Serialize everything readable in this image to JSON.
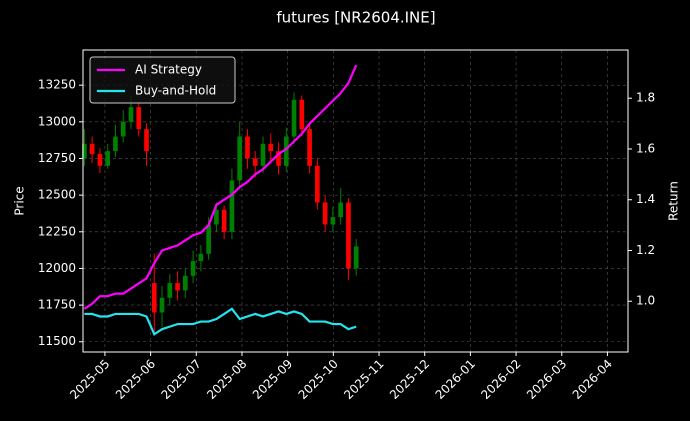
{
  "chart_data": {
    "type": "candlestick",
    "title": "futures [NR2604.INE]",
    "ylabel": "Price",
    "y2label": "Return",
    "x": [
      -0.45,
      -0.28,
      -0.11,
      0.06,
      0.23,
      0.4,
      0.57,
      0.74,
      0.91,
      1.08,
      1.25,
      1.42,
      1.59,
      1.76,
      1.93,
      2.1,
      2.27,
      2.44,
      2.61,
      2.78,
      2.95,
      3.12,
      3.29,
      3.46,
      3.63,
      3.8,
      3.97,
      4.14,
      4.31,
      4.48,
      4.65,
      4.82,
      4.99,
      5.16,
      5.33,
      5.5
    ],
    "open": [
      12750,
      12850,
      12780,
      12700,
      12800,
      12900,
      13000,
      13100,
      12950,
      11900,
      11700,
      11800,
      11900,
      11850,
      11950,
      12050,
      12100,
      12300,
      12400,
      12250,
      12600,
      12900,
      12750,
      12700,
      12850,
      12800,
      12700,
      12900,
      13150,
      12950,
      12700,
      12450,
      12300,
      12350,
      12450,
      12000
    ],
    "high": [
      12950,
      12900,
      12820,
      12850,
      12980,
      13080,
      13180,
      13130,
      12990,
      12100,
      11880,
      11960,
      11980,
      12000,
      12120,
      12160,
      12350,
      12450,
      12430,
      12680,
      13000,
      12950,
      12800,
      12900,
      12920,
      12860,
      12960,
      13200,
      13180,
      13000,
      12750,
      12500,
      12420,
      12550,
      12480,
      12200
    ],
    "low": [
      12700,
      12720,
      12650,
      12680,
      12760,
      12860,
      12950,
      12900,
      12700,
      11550,
      11600,
      11750,
      11780,
      11800,
      11900,
      11980,
      12060,
      12250,
      12200,
      12200,
      12550,
      12680,
      12620,
      12650,
      12720,
      12640,
      12660,
      12850,
      12900,
      12650,
      12400,
      12250,
      12250,
      12300,
      11920,
      11950
    ],
    "close": [
      12850,
      12780,
      12700,
      12800,
      12900,
      13000,
      13100,
      12950,
      12800,
      11700,
      11800,
      11900,
      11850,
      11950,
      12050,
      12100,
      12300,
      12400,
      12250,
      12600,
      12900,
      12750,
      12700,
      12850,
      12800,
      12700,
      12900,
      13150,
      12950,
      12700,
      12450,
      12300,
      12350,
      12450,
      12000,
      12150
    ],
    "up_color": "#008000",
    "down_color": "#ff0000",
    "series": [
      {
        "name": "AI Strategy",
        "color": "#ff00ff",
        "axis": "y2",
        "values": [
          0.97,
          0.99,
          1.02,
          1.02,
          1.03,
          1.03,
          1.05,
          1.07,
          1.09,
          1.15,
          1.2,
          1.21,
          1.22,
          1.24,
          1.26,
          1.27,
          1.3,
          1.38,
          1.4,
          1.42,
          1.45,
          1.47,
          1.5,
          1.52,
          1.55,
          1.58,
          1.6,
          1.63,
          1.66,
          1.7,
          1.73,
          1.76,
          1.79,
          1.82,
          1.86,
          1.93
        ]
      },
      {
        "name": "Buy-and-Hold",
        "color": "#22e5f0",
        "axis": "y2",
        "values": [
          0.95,
          0.95,
          0.94,
          0.94,
          0.95,
          0.95,
          0.95,
          0.95,
          0.94,
          0.87,
          0.89,
          0.9,
          0.91,
          0.91,
          0.91,
          0.92,
          0.92,
          0.93,
          0.95,
          0.97,
          0.93,
          0.94,
          0.95,
          0.94,
          0.95,
          0.96,
          0.95,
          0.96,
          0.95,
          0.92,
          0.92,
          0.92,
          0.91,
          0.91,
          0.89,
          0.9
        ]
      }
    ],
    "xlim": [
      -0.48,
      11.45
    ],
    "xticks": [
      {
        "value": 0,
        "label": "2025-05"
      },
      {
        "value": 1,
        "label": "2025-06"
      },
      {
        "value": 2,
        "label": "2025-07"
      },
      {
        "value": 3,
        "label": "2025-08"
      },
      {
        "value": 4,
        "label": "2025-09"
      },
      {
        "value": 5,
        "label": "2025-10"
      },
      {
        "value": 6,
        "label": "2025-11"
      },
      {
        "value": 7,
        "label": "2025-12"
      },
      {
        "value": 8,
        "label": "2026-01"
      },
      {
        "value": 9,
        "label": "2026-02"
      },
      {
        "value": 10,
        "label": "2026-03"
      },
      {
        "value": 11,
        "label": "2026-04"
      }
    ],
    "ylim": [
      11430,
      13490
    ],
    "yticks": [
      11500,
      11750,
      12000,
      12250,
      12500,
      12750,
      13000,
      13250
    ],
    "y2lim": [
      0.8,
      1.99
    ],
    "y2ticks": [
      {
        "value": 1,
        "label": "1.0"
      },
      1.2,
      1.4,
      1.6,
      1.8
    ],
    "grid": true,
    "legend": "upper left"
  }
}
